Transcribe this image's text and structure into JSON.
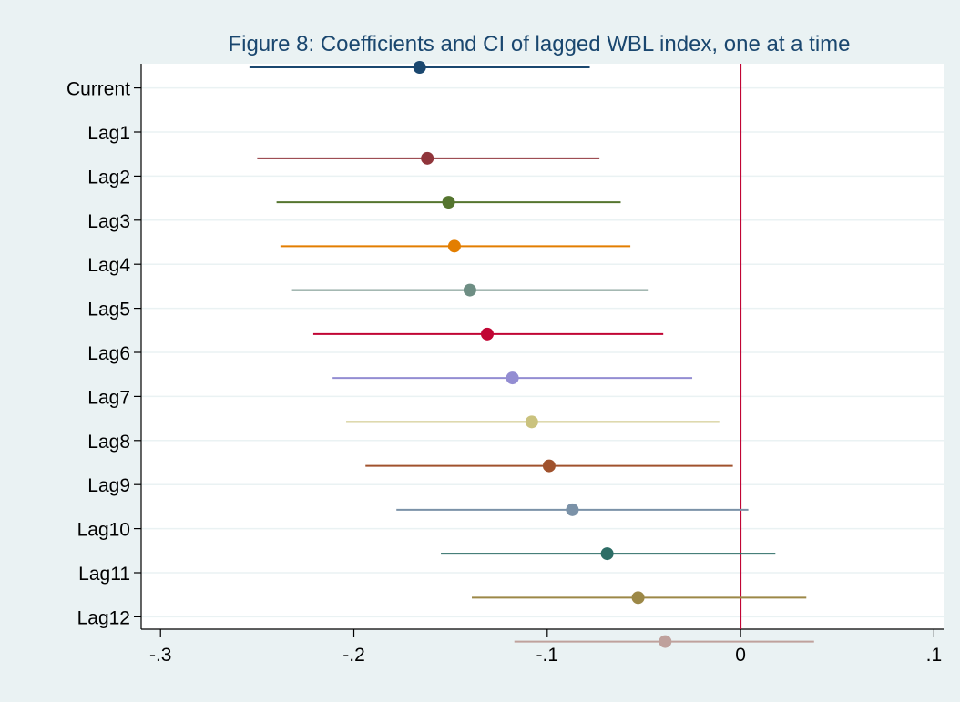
{
  "chart_data": {
    "type": "scatter",
    "title": "Figure 8: Coefficients and CI of lagged WBL index, one at a time",
    "xlabel": "",
    "ylabel": "",
    "xlim": [
      -0.31,
      0.105
    ],
    "x_ticks": [
      -0.3,
      -0.2,
      -0.1,
      0,
      0.1
    ],
    "x_tick_labels": [
      "-.3",
      "-.2",
      "-.1",
      "0",
      ".1"
    ],
    "reference_line": {
      "x": 0,
      "color": "#c10534"
    },
    "grid": true,
    "legend": "none",
    "categories": [
      "Current",
      "Lag1",
      "Lag2",
      "Lag3",
      "Lag4",
      "Lag5",
      "Lag6",
      "Lag7",
      "Lag8",
      "Lag9",
      "Lag10",
      "Lag11",
      "Lag12"
    ],
    "series": [
      {
        "label": "Current",
        "coef": -0.166,
        "lower": -0.254,
        "upper": -0.078,
        "color": "#1a476f"
      },
      {
        "label": "Lag1",
        "coef": -0.162,
        "lower": -0.25,
        "upper": -0.073,
        "color": "#90353b"
      },
      {
        "label": "Lag2",
        "coef": -0.151,
        "lower": -0.24,
        "upper": -0.062,
        "color": "#55752f"
      },
      {
        "label": "Lag3",
        "coef": -0.148,
        "lower": -0.238,
        "upper": -0.057,
        "color": "#e37e00"
      },
      {
        "label": "Lag4",
        "coef": -0.14,
        "lower": -0.232,
        "upper": -0.048,
        "color": "#6e8e84"
      },
      {
        "label": "Lag5",
        "coef": -0.131,
        "lower": -0.221,
        "upper": -0.04,
        "color": "#c10534"
      },
      {
        "label": "Lag6",
        "coef": -0.118,
        "lower": -0.211,
        "upper": -0.025,
        "color": "#938dd2"
      },
      {
        "label": "Lag7",
        "coef": -0.108,
        "lower": -0.204,
        "upper": -0.011,
        "color": "#cac27e"
      },
      {
        "label": "Lag8",
        "coef": -0.099,
        "lower": -0.194,
        "upper": -0.004,
        "color": "#a0522d"
      },
      {
        "label": "Lag9",
        "coef": -0.087,
        "lower": -0.178,
        "upper": 0.004,
        "color": "#7b92a8"
      },
      {
        "label": "Lag10",
        "coef": -0.069,
        "lower": -0.155,
        "upper": 0.018,
        "color": "#2d6d66"
      },
      {
        "label": "Lag11",
        "coef": -0.053,
        "lower": -0.139,
        "upper": 0.034,
        "color": "#9c8847"
      },
      {
        "label": "Lag12",
        "coef": -0.039,
        "lower": -0.117,
        "upper": 0.038,
        "color": "#bfa19c"
      }
    ]
  }
}
